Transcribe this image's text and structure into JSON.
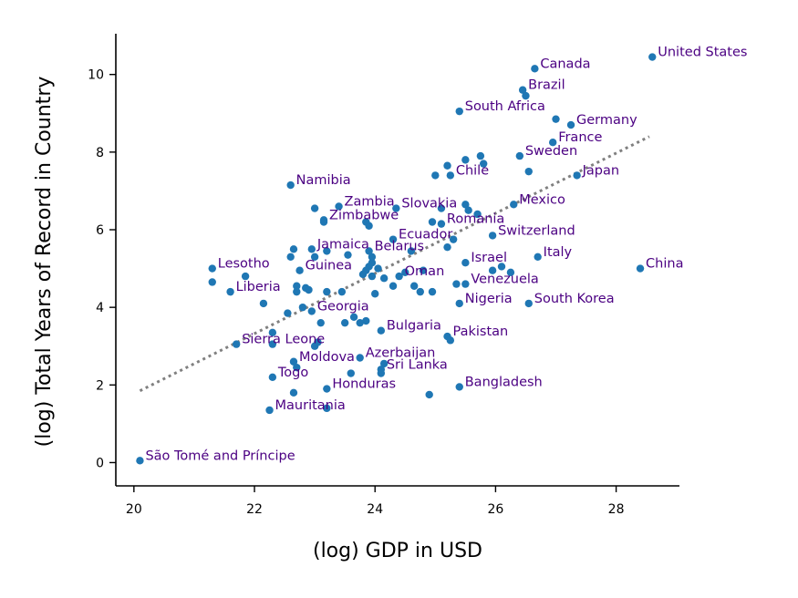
{
  "chart_data": {
    "type": "scatter",
    "title": "",
    "xlabel": "(log) GDP in USD",
    "ylabel": "(log) Total Years of Record in Country",
    "xlim": [
      19.7,
      29.05
    ],
    "ylim": [
      -0.6,
      11.05
    ],
    "xticks": [
      20,
      22,
      24,
      26,
      28
    ],
    "yticks": [
      0,
      2,
      4,
      6,
      8,
      10
    ],
    "grid": false,
    "trendline": {
      "style": "dotted",
      "color": "#808080",
      "x": [
        20.1,
        28.55
      ],
      "y": [
        1.85,
        8.4
      ]
    },
    "point_color": "#1f77b4",
    "label_color": "#4b0082",
    "points": [
      {
        "x": 28.6,
        "y": 10.45,
        "label": "United States"
      },
      {
        "x": 26.65,
        "y": 10.15,
        "label": "Canada"
      },
      {
        "x": 26.45,
        "y": 9.6,
        "label": "Brazil"
      },
      {
        "x": 26.5,
        "y": 9.45,
        "label": ""
      },
      {
        "x": 25.4,
        "y": 9.05,
        "label": "South Africa"
      },
      {
        "x": 27.0,
        "y": 8.85,
        "label": ""
      },
      {
        "x": 27.25,
        "y": 8.7,
        "label": "Germany"
      },
      {
        "x": 26.95,
        "y": 8.25,
        "label": "France"
      },
      {
        "x": 26.4,
        "y": 7.9,
        "label": "Sweden"
      },
      {
        "x": 25.75,
        "y": 7.9,
        "label": ""
      },
      {
        "x": 25.5,
        "y": 7.8,
        "label": ""
      },
      {
        "x": 25.8,
        "y": 7.7,
        "label": ""
      },
      {
        "x": 25.2,
        "y": 7.65,
        "label": ""
      },
      {
        "x": 25.25,
        "y": 7.4,
        "label": "Chile"
      },
      {
        "x": 25.0,
        "y": 7.4,
        "label": ""
      },
      {
        "x": 26.55,
        "y": 7.5,
        "label": ""
      },
      {
        "x": 27.35,
        "y": 7.4,
        "label": "Japan"
      },
      {
        "x": 22.6,
        "y": 7.15,
        "label": "Namibia"
      },
      {
        "x": 26.3,
        "y": 6.65,
        "label": "Mexico"
      },
      {
        "x": 25.5,
        "y": 6.65,
        "label": ""
      },
      {
        "x": 25.55,
        "y": 6.5,
        "label": ""
      },
      {
        "x": 25.7,
        "y": 6.4,
        "label": ""
      },
      {
        "x": 25.1,
        "y": 6.55,
        "label": ""
      },
      {
        "x": 24.35,
        "y": 6.55,
        "label": "Slovakia"
      },
      {
        "x": 23.0,
        "y": 6.55,
        "label": ""
      },
      {
        "x": 23.4,
        "y": 6.6,
        "label": "Zambia"
      },
      {
        "x": 23.15,
        "y": 6.25,
        "label": "Zimbabwe"
      },
      {
        "x": 23.15,
        "y": 6.2,
        "label": ""
      },
      {
        "x": 23.85,
        "y": 6.2,
        "label": ""
      },
      {
        "x": 23.9,
        "y": 6.1,
        "label": ""
      },
      {
        "x": 24.95,
        "y": 6.2,
        "label": ""
      },
      {
        "x": 25.1,
        "y": 6.15,
        "label": "Romania"
      },
      {
        "x": 24.3,
        "y": 5.75,
        "label": "Ecuador"
      },
      {
        "x": 25.3,
        "y": 5.75,
        "label": ""
      },
      {
        "x": 25.2,
        "y": 5.55,
        "label": ""
      },
      {
        "x": 25.95,
        "y": 5.85,
        "label": "Switzerland"
      },
      {
        "x": 22.65,
        "y": 5.5,
        "label": ""
      },
      {
        "x": 22.95,
        "y": 5.5,
        "label": "Jamaica"
      },
      {
        "x": 23.2,
        "y": 5.45,
        "label": ""
      },
      {
        "x": 23.0,
        "y": 5.3,
        "label": ""
      },
      {
        "x": 22.6,
        "y": 5.3,
        "label": ""
      },
      {
        "x": 23.55,
        "y": 5.35,
        "label": ""
      },
      {
        "x": 23.9,
        "y": 5.45,
        "label": "Belarus"
      },
      {
        "x": 23.95,
        "y": 5.3,
        "label": ""
      },
      {
        "x": 24.6,
        "y": 5.45,
        "label": ""
      },
      {
        "x": 23.9,
        "y": 5.05,
        "label": ""
      },
      {
        "x": 23.95,
        "y": 5.15,
        "label": ""
      },
      {
        "x": 23.85,
        "y": 4.95,
        "label": ""
      },
      {
        "x": 24.05,
        "y": 5.0,
        "label": ""
      },
      {
        "x": 26.7,
        "y": 5.3,
        "label": "Italy"
      },
      {
        "x": 25.5,
        "y": 5.15,
        "label": "Israel"
      },
      {
        "x": 26.1,
        "y": 5.05,
        "label": ""
      },
      {
        "x": 25.95,
        "y": 4.95,
        "label": ""
      },
      {
        "x": 26.25,
        "y": 4.9,
        "label": ""
      },
      {
        "x": 28.4,
        "y": 5.0,
        "label": "China"
      },
      {
        "x": 21.3,
        "y": 5.0,
        "label": "Lesotho"
      },
      {
        "x": 21.85,
        "y": 4.8,
        "label": ""
      },
      {
        "x": 21.3,
        "y": 4.65,
        "label": ""
      },
      {
        "x": 22.75,
        "y": 4.95,
        "label": "Guinea"
      },
      {
        "x": 23.8,
        "y": 4.85,
        "label": ""
      },
      {
        "x": 23.95,
        "y": 4.8,
        "label": ""
      },
      {
        "x": 24.15,
        "y": 4.75,
        "label": ""
      },
      {
        "x": 24.4,
        "y": 4.8,
        "label": "Oman"
      },
      {
        "x": 24.5,
        "y": 4.9,
        "label": ""
      },
      {
        "x": 24.8,
        "y": 4.95,
        "label": ""
      },
      {
        "x": 25.35,
        "y": 4.6,
        "label": ""
      },
      {
        "x": 25.5,
        "y": 4.6,
        "label": "Venezuela"
      },
      {
        "x": 21.6,
        "y": 4.4,
        "label": "Liberia"
      },
      {
        "x": 22.7,
        "y": 4.55,
        "label": ""
      },
      {
        "x": 22.85,
        "y": 4.5,
        "label": ""
      },
      {
        "x": 22.9,
        "y": 4.45,
        "label": ""
      },
      {
        "x": 22.7,
        "y": 4.4,
        "label": ""
      },
      {
        "x": 23.2,
        "y": 4.4,
        "label": ""
      },
      {
        "x": 23.45,
        "y": 4.4,
        "label": ""
      },
      {
        "x": 24.0,
        "y": 4.35,
        "label": ""
      },
      {
        "x": 24.3,
        "y": 4.55,
        "label": ""
      },
      {
        "x": 24.65,
        "y": 4.55,
        "label": ""
      },
      {
        "x": 24.75,
        "y": 4.4,
        "label": ""
      },
      {
        "x": 24.95,
        "y": 4.4,
        "label": ""
      },
      {
        "x": 25.4,
        "y": 4.1,
        "label": "Nigeria"
      },
      {
        "x": 26.55,
        "y": 4.1,
        "label": "South Korea"
      },
      {
        "x": 22.15,
        "y": 4.1,
        "label": ""
      },
      {
        "x": 22.8,
        "y": 4.0,
        "label": ""
      },
      {
        "x": 22.95,
        "y": 3.9,
        "label": "Georgia"
      },
      {
        "x": 22.55,
        "y": 3.85,
        "label": ""
      },
      {
        "x": 23.1,
        "y": 3.6,
        "label": ""
      },
      {
        "x": 23.5,
        "y": 3.6,
        "label": ""
      },
      {
        "x": 23.65,
        "y": 3.75,
        "label": ""
      },
      {
        "x": 23.75,
        "y": 3.6,
        "label": ""
      },
      {
        "x": 23.85,
        "y": 3.65,
        "label": ""
      },
      {
        "x": 24.1,
        "y": 3.4,
        "label": "Bulgaria"
      },
      {
        "x": 25.2,
        "y": 3.25,
        "label": "Pakistan"
      },
      {
        "x": 25.25,
        "y": 3.15,
        "label": ""
      },
      {
        "x": 22.3,
        "y": 3.35,
        "label": ""
      },
      {
        "x": 21.7,
        "y": 3.05,
        "label": "Sierra Leone"
      },
      {
        "x": 22.3,
        "y": 3.05,
        "label": ""
      },
      {
        "x": 23.0,
        "y": 3.0,
        "label": ""
      },
      {
        "x": 23.05,
        "y": 3.1,
        "label": ""
      },
      {
        "x": 23.75,
        "y": 2.7,
        "label": "Azerbaijan"
      },
      {
        "x": 22.65,
        "y": 2.6,
        "label": "Moldova"
      },
      {
        "x": 22.7,
        "y": 2.45,
        "label": ""
      },
      {
        "x": 24.15,
        "y": 2.55,
        "label": ""
      },
      {
        "x": 24.1,
        "y": 2.4,
        "label": "Sri Lanka"
      },
      {
        "x": 24.1,
        "y": 2.3,
        "label": ""
      },
      {
        "x": 22.3,
        "y": 2.2,
        "label": "Togo"
      },
      {
        "x": 23.6,
        "y": 2.3,
        "label": ""
      },
      {
        "x": 23.2,
        "y": 1.9,
        "label": "Honduras"
      },
      {
        "x": 22.65,
        "y": 1.8,
        "label": ""
      },
      {
        "x": 24.9,
        "y": 1.75,
        "label": ""
      },
      {
        "x": 25.4,
        "y": 1.95,
        "label": "Bangladesh"
      },
      {
        "x": 22.25,
        "y": 1.35,
        "label": "Mauritania"
      },
      {
        "x": 23.2,
        "y": 1.4,
        "label": ""
      },
      {
        "x": 20.1,
        "y": 0.05,
        "label": "São Tomé and Príncipe"
      }
    ]
  }
}
